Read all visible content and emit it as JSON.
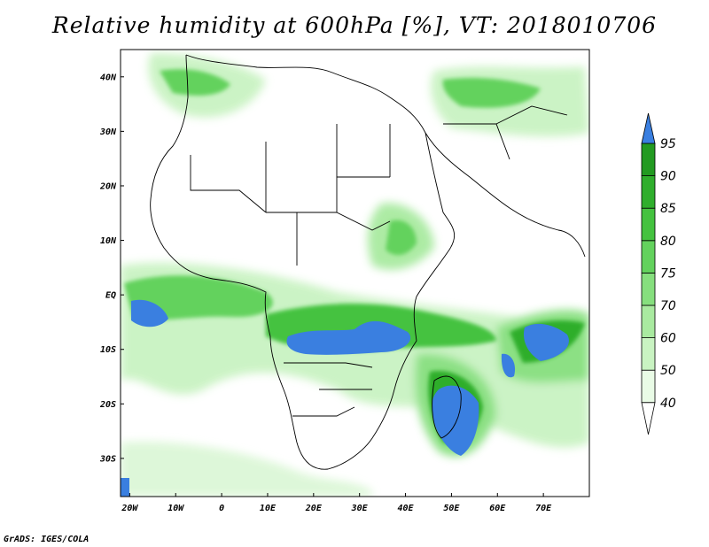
{
  "title": "Relative humidity at 600hPa [%], VT: 2018010706",
  "credit": "GrADS: IGES/COLA",
  "lat_labels": [
    "40N",
    "30N",
    "20N",
    "10N",
    "EQ",
    "10S",
    "20S",
    "30S"
  ],
  "lon_labels": [
    "20W",
    "10W",
    "0",
    "10E",
    "20E",
    "30E",
    "40E",
    "50E",
    "60E",
    "70E"
  ],
  "lat_values": [
    40,
    30,
    20,
    10,
    0,
    -10,
    -20,
    -30
  ],
  "lon_values": [
    -20,
    -10,
    0,
    10,
    20,
    30,
    40,
    50,
    60,
    70
  ],
  "extent": {
    "lon_min": -22,
    "lon_max": 80,
    "lat_min": -37,
    "lat_max": 45
  },
  "colorbar": {
    "levels": [
      "40",
      "50",
      "60",
      "70",
      "75",
      "80",
      "85",
      "90",
      "95"
    ],
    "colors": [
      "#e9fbe6",
      "#c9f3c2",
      "#a9eaa0",
      "#86df7e",
      "#63d25d",
      "#44c23f",
      "#2fae2c",
      "#229a21",
      "#3a7fe0"
    ]
  },
  "colors": {
    "land_border": "#000000",
    "over_95": "#3a7fe0"
  }
}
